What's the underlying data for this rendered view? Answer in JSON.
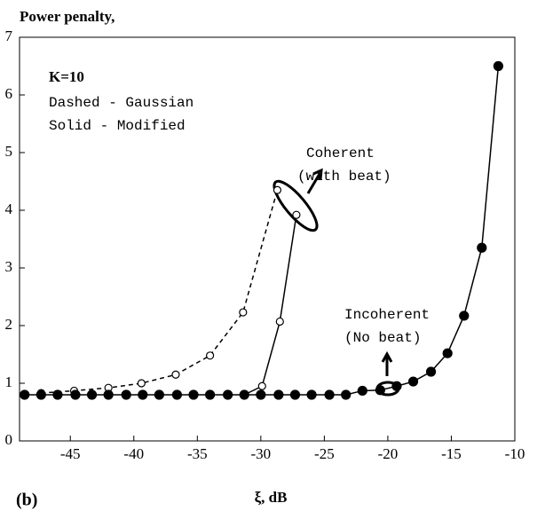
{
  "chart_data": {
    "type": "line",
    "title": "Power penalty,",
    "xlabel": "ξ, dB",
    "panel_label": "(b)",
    "annotations": [
      "K=10",
      "Dashed - Gaussian",
      "Solid - Modified",
      "Coherent",
      "(with beat)",
      "Incoherent",
      "(No beat)"
    ],
    "xlim": [
      -49,
      -10
    ],
    "ylim": [
      0,
      7
    ],
    "xticks": [
      -45,
      -40,
      -35,
      -30,
      -25,
      -20,
      -15,
      -10
    ],
    "yticks": [
      0,
      1,
      2,
      3,
      4,
      5,
      6,
      7
    ],
    "series": [
      {
        "name": "Gaussian coherent",
        "color": "#000",
        "dash": true,
        "marker": "open",
        "x": [
          -47.3,
          -44.7,
          -42,
          -39.4,
          -36.7,
          -34,
          -31.4,
          -28.7
        ],
        "values": [
          0.83,
          0.87,
          0.92,
          1.0,
          1.15,
          1.48,
          2.23,
          4.35
        ]
      },
      {
        "name": "Modified coherent",
        "color": "#000",
        "dash": false,
        "marker": "open",
        "x": [
          -31.3,
          -29.9,
          -28.5,
          -27.2
        ],
        "values": [
          0.8,
          0.95,
          2.07,
          3.92
        ]
      },
      {
        "name": "Modified incoherent",
        "color": "#000",
        "dash": false,
        "marker": "filled",
        "x": [
          -48.6,
          -47.3,
          -46,
          -44.6,
          -43.3,
          -42,
          -40.6,
          -39.3,
          -38,
          -36.6,
          -35.3,
          -34,
          -32.6,
          -31.3,
          -30,
          -28.6,
          -27.3,
          -26,
          -24.6,
          -23.3,
          -22,
          -20.6,
          -19.3,
          -18,
          -16.6,
          -15.3,
          -14,
          -12.6,
          -11.3
        ],
        "values": [
          0.8,
          0.8,
          0.8,
          0.8,
          0.8,
          0.8,
          0.8,
          0.8,
          0.8,
          0.8,
          0.8,
          0.8,
          0.8,
          0.8,
          0.8,
          0.8,
          0.8,
          0.8,
          0.8,
          0.8,
          0.87,
          0.88,
          0.95,
          1.03,
          1.2,
          1.52,
          2.17,
          3.35,
          6.5
        ]
      }
    ]
  }
}
